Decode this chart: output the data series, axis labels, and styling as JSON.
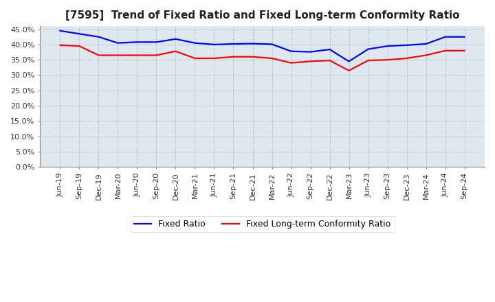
{
  "title": "[7595]  Trend of Fixed Ratio and Fixed Long-term Conformity Ratio",
  "x_labels": [
    "Jun-19",
    "Sep-19",
    "Dec-19",
    "Mar-20",
    "Jun-20",
    "Sep-20",
    "Dec-20",
    "Mar-21",
    "Jun-21",
    "Sep-21",
    "Dec-21",
    "Mar-22",
    "Jun-22",
    "Sep-22",
    "Dec-22",
    "Mar-23",
    "Jun-23",
    "Sep-23",
    "Dec-23",
    "Mar-24",
    "Jun-24",
    "Sep-24"
  ],
  "fixed_ratio": [
    44.5,
    43.5,
    42.5,
    40.5,
    40.8,
    40.8,
    41.8,
    40.5,
    40.0,
    40.2,
    40.3,
    40.1,
    37.8,
    37.6,
    38.4,
    34.5,
    38.5,
    39.5,
    39.8,
    40.2,
    42.5,
    42.5
  ],
  "fixed_lt_ratio": [
    39.8,
    39.5,
    36.5,
    36.5,
    36.5,
    36.5,
    37.8,
    35.5,
    35.5,
    36.0,
    36.0,
    35.5,
    34.0,
    34.5,
    34.8,
    31.5,
    34.8,
    35.0,
    35.5,
    36.5,
    38.0,
    38.0
  ],
  "fixed_ratio_color": "#0000ff",
  "fixed_lt_ratio_color": "#ff0000",
  "background_color": "#ffffff",
  "plot_bg_color": "#dde8f0",
  "grid_color": "#888888",
  "ylim": [
    0,
    46
  ],
  "yticks": [
    0,
    5,
    10,
    15,
    20,
    25,
    30,
    35,
    40,
    45
  ],
  "legend_fixed": "Fixed Ratio",
  "legend_lt": "Fixed Long-term Conformity Ratio",
  "title_fontsize": 11,
  "tick_fontsize": 8,
  "legend_fontsize": 9
}
